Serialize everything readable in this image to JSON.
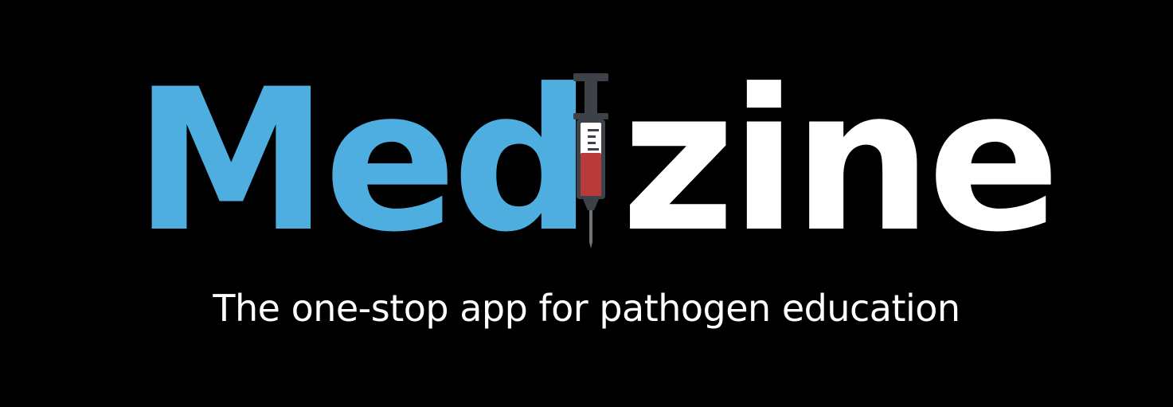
{
  "logo": {
    "left_text": "Med",
    "right_text": "zine",
    "left_color": "#4faee0",
    "right_color": "#ffffff",
    "icon": "syringe-icon"
  },
  "tagline": "The one-stop app for pathogen education",
  "colors": {
    "background": "#000000",
    "syringe_body": "#3d4249",
    "syringe_fill": "#b83a3a"
  }
}
